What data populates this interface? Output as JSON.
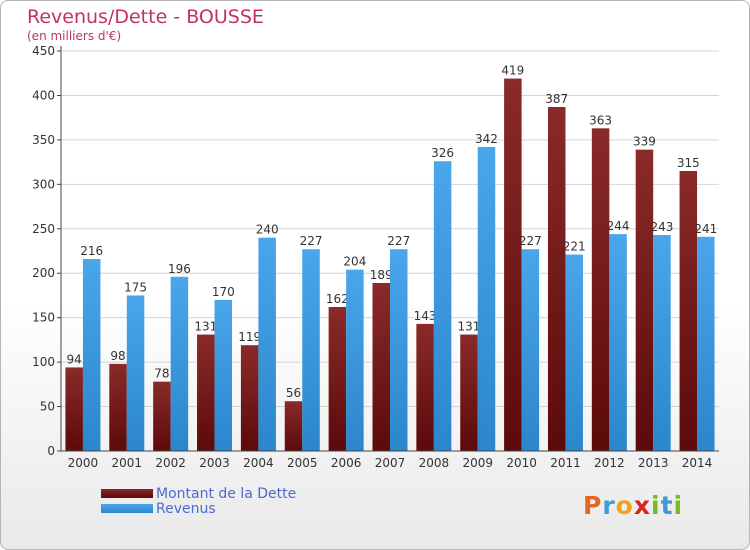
{
  "chart_data": {
    "type": "bar",
    "title": "Revenus/Dette - BOUSSE",
    "subtitle": "(en milliers d'€)",
    "categories": [
      "2000",
      "2001",
      "2002",
      "2003",
      "2004",
      "2005",
      "2006",
      "2007",
      "2008",
      "2009",
      "2010",
      "2011",
      "2012",
      "2013",
      "2014"
    ],
    "series": [
      {
        "name": "Montant de la Dette",
        "color": "#7a1f1f",
        "values": [
          94,
          98,
          78,
          131,
          119,
          56,
          162,
          189,
          143,
          131,
          419,
          387,
          363,
          339,
          315
        ]
      },
      {
        "name": "Revenus",
        "color": "#3b9be0",
        "values": [
          216,
          175,
          196,
          170,
          240,
          227,
          204,
          227,
          326,
          342,
          227,
          221,
          244,
          243,
          241
        ]
      }
    ],
    "yticks": [
      0,
      50,
      100,
      150,
      200,
      250,
      300,
      350,
      400,
      450
    ],
    "ylim": [
      0,
      450
    ],
    "grid": true,
    "legend_position": "bottom-left"
  },
  "branding": {
    "logo_letters": [
      "P",
      "r",
      "o",
      "x",
      "i",
      "t",
      "i"
    ],
    "logo_colors": [
      "#e8641e",
      "#3d9ad9",
      "#f0a21a",
      "#d9241c",
      "#79b928",
      "#3d9ad9",
      "#79b928"
    ]
  }
}
